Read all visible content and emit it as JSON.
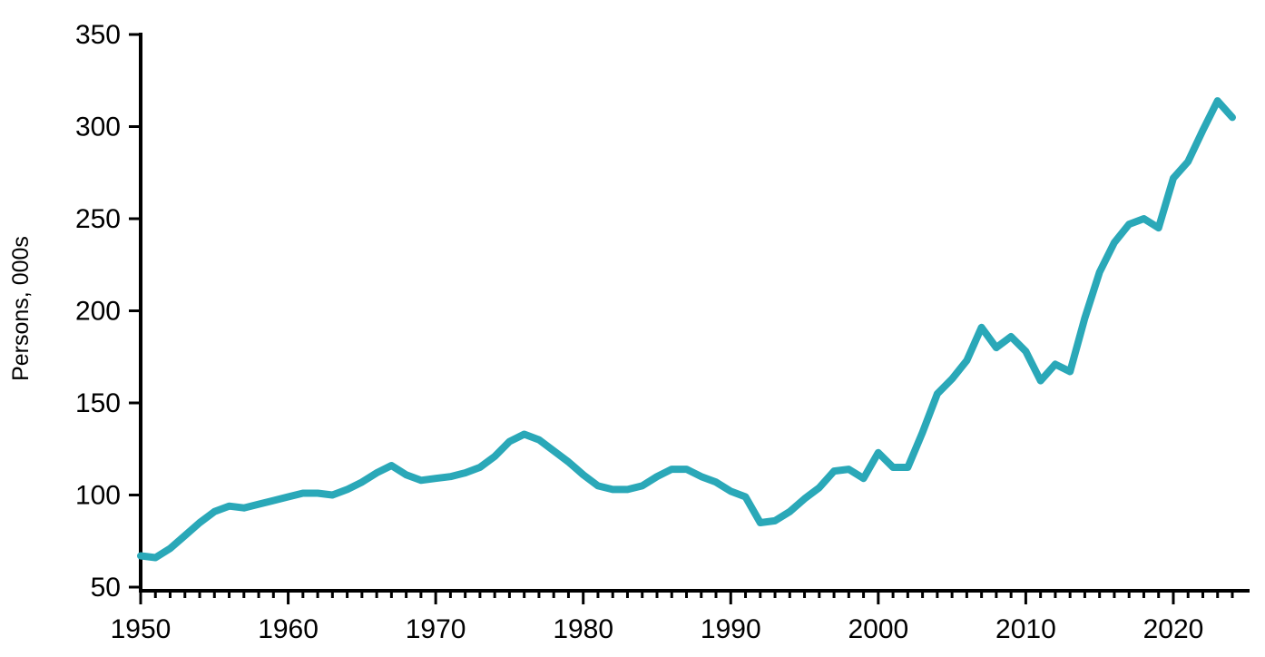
{
  "chart_data": {
    "type": "line",
    "title": "",
    "ylabel": "Persons, 000s",
    "xlabel": "",
    "ylim": [
      50,
      350
    ],
    "xlim": [
      1950,
      2024
    ],
    "grid": false,
    "legend": "none",
    "line_color": "#2AA8B8",
    "axis_color": "#000000",
    "background_color": "#FFFFFF",
    "x_tick_labels": [
      "1950",
      "1960",
      "1970",
      "1980",
      "1990",
      "2000",
      "2010",
      "2020"
    ],
    "x_tick_values": [
      1950,
      1960,
      1970,
      1980,
      1990,
      2000,
      2010,
      2020
    ],
    "y_tick_labels": [
      "50",
      "100",
      "150",
      "200",
      "250",
      "300",
      "350"
    ],
    "y_tick_values": [
      50,
      100,
      150,
      200,
      250,
      300,
      350
    ],
    "x": [
      1950,
      1951,
      1952,
      1953,
      1954,
      1955,
      1956,
      1957,
      1958,
      1959,
      1960,
      1961,
      1962,
      1963,
      1964,
      1965,
      1966,
      1967,
      1968,
      1969,
      1970,
      1971,
      1972,
      1973,
      1974,
      1975,
      1976,
      1977,
      1978,
      1979,
      1980,
      1981,
      1982,
      1983,
      1984,
      1985,
      1986,
      1987,
      1988,
      1989,
      1990,
      1991,
      1992,
      1993,
      1994,
      1995,
      1996,
      1997,
      1998,
      1999,
      2000,
      2001,
      2002,
      2003,
      2004,
      2005,
      2006,
      2007,
      2008,
      2009,
      2010,
      2011,
      2012,
      2013,
      2014,
      2015,
      2016,
      2017,
      2018,
      2019,
      2020,
      2021,
      2022,
      2023,
      2024
    ],
    "series": [
      {
        "name": "Persons (000s)",
        "values": [
          67,
          66,
          71,
          78,
          85,
          91,
          94,
          93,
          95,
          97,
          99,
          101,
          101,
          100,
          103,
          107,
          112,
          116,
          111,
          108,
          109,
          110,
          112,
          115,
          121,
          129,
          133,
          130,
          124,
          118,
          111,
          105,
          103,
          103,
          105,
          110,
          114,
          114,
          110,
          107,
          102,
          99,
          85,
          86,
          91,
          98,
          104,
          113,
          114,
          109,
          123,
          115,
          115,
          134,
          155,
          163,
          173,
          191,
          180,
          186,
          178,
          162,
          171,
          167,
          196,
          221,
          237,
          247,
          250,
          245,
          272,
          281,
          298,
          314,
          305
        ]
      }
    ]
  }
}
